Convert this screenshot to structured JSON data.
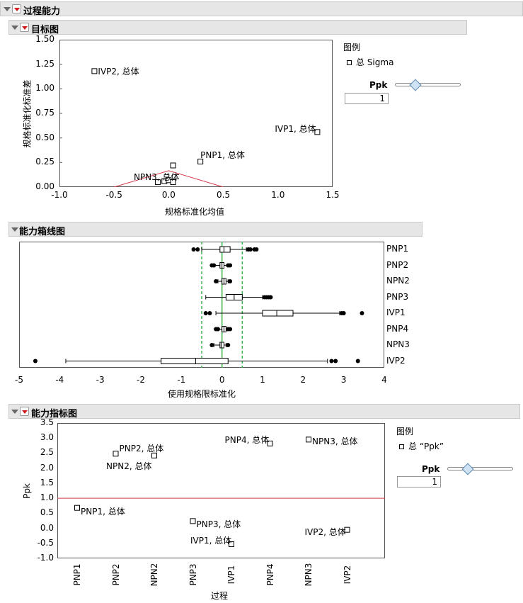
{
  "sections": {
    "main_title": "过程能力",
    "goal_plot_title": "目标图",
    "boxplot_title": "能力箱线图",
    "index_plot_title": "能力指标图"
  },
  "goal_plot": {
    "legend_title": "图例",
    "legend_item": "总 Sigma",
    "slider_label": "Ppk",
    "slider_value": "1",
    "xlabel": "规格标准化均值",
    "ylabel": "规格标准化标准差",
    "xticks": [
      "-1.0",
      "-0.5",
      "0.0",
      "0.5",
      "1.0",
      "1.5"
    ],
    "yticks": [
      "0.00",
      "0.25",
      "0.50",
      "0.75",
      "1.00",
      "1.25",
      "1.50"
    ],
    "point_labels": [
      "IVP2, 总体",
      "IVP1, 总体",
      "PNP1, 总体",
      "NPN3, 总体"
    ]
  },
  "boxplot": {
    "xlabel": "使用规格限标准化",
    "xticks": [
      "-5",
      "-4",
      "-3",
      "-2",
      "-1",
      "0",
      "1",
      "2",
      "3",
      "4"
    ],
    "processes": [
      "PNP1",
      "PNP2",
      "NPN2",
      "PNP3",
      "IVP1",
      "PNP4",
      "NPN3",
      "IVP2"
    ]
  },
  "index_plot": {
    "legend_title": "图例",
    "legend_item": "总 “Ppk”",
    "slider_label": "Ppk",
    "slider_value": "1",
    "xlabel": "过程",
    "ylabel": "Ppk",
    "yticks": [
      "3.5",
      "3.0",
      "2.5",
      "2.0",
      "1.5",
      "1.0",
      "0.5",
      "0.0",
      "-0.5",
      "-1.0"
    ],
    "categories": [
      "PNP1",
      "PNP2",
      "NPN2",
      "PNP3",
      "IVP1",
      "PNP4",
      "NPN3",
      "IVP2"
    ],
    "point_labels": [
      "PNP1, 总体",
      "PNP2, 总体",
      "NPN2, 总体",
      "PNP3, 总体",
      "IVP1, 总体",
      "PNP4, 总体",
      "NPN3, 总体",
      "IVP2, 总体"
    ]
  },
  "chart_data": [
    {
      "type": "scatter",
      "title": "目标图",
      "xlabel": "规格标准化均值",
      "ylabel": "规格标准化标准差",
      "xlim": [
        -1.0,
        1.5
      ],
      "ylim": [
        0.0,
        1.5
      ],
      "series": [
        {
          "name": "总 Sigma",
          "points": [
            {
              "label": "IVP2, 总体",
              "x": -0.68,
              "y": 1.18
            },
            {
              "label": "IVP1, 总体",
              "x": 1.36,
              "y": 0.56
            },
            {
              "label": "PNP1, 总体",
              "x": 0.04,
              "y": 0.22
            },
            {
              "label": "PNP1, 总体",
              "x": 0.29,
              "y": 0.26
            },
            {
              "label": "NPN3, 总体",
              "x": -0.1,
              "y": 0.05
            },
            {
              "label": "NPN3, 总体",
              "x": -0.04,
              "y": 0.06
            },
            {
              "label": "NPN3, 总体",
              "x": 0.0,
              "y": 0.07
            },
            {
              "label": "NPN3, 总体",
              "x": 0.04,
              "y": 0.05
            }
          ]
        }
      ],
      "ppk_curve_level": 1
    },
    {
      "type": "box",
      "title": "能力箱线图",
      "xlabel": "使用规格限标准化",
      "xlim": [
        -5,
        4
      ],
      "spec_limits": [
        -0.5,
        0.5
      ],
      "target": 0,
      "boxes": [
        {
          "name": "PNP1",
          "min": -0.5,
          "q1": -0.05,
          "median": 0.05,
          "q3": 0.2,
          "max": 0.6,
          "outliers": [
            -0.7,
            -0.6,
            0.65,
            0.7,
            0.8,
            0.85
          ]
        },
        {
          "name": "PNP2",
          "min": -0.2,
          "q1": -0.05,
          "median": 0.0,
          "q3": 0.05,
          "max": 0.15,
          "outliers": [
            -0.25,
            -0.2,
            0.15,
            0.2
          ]
        },
        {
          "name": "NPN2",
          "min": -0.1,
          "q1": 0.0,
          "median": 0.05,
          "q3": 0.1,
          "max": 0.15,
          "outliers": [
            -0.15,
            0.2
          ]
        },
        {
          "name": "PNP3",
          "min": -0.4,
          "q1": 0.1,
          "median": 0.3,
          "q3": 0.5,
          "max": 1.0,
          "outliers": [
            1.05,
            1.1,
            1.15,
            1.2
          ]
        },
        {
          "name": "IVP1",
          "min": -0.15,
          "q1": 1.0,
          "median": 1.35,
          "q3": 1.75,
          "max": 2.9,
          "outliers": [
            -0.4,
            -0.3,
            2.95,
            3.0,
            3.45
          ]
        },
        {
          "name": "PNP4",
          "min": -0.1,
          "q1": 0.0,
          "median": 0.05,
          "q3": 0.1,
          "max": 0.15,
          "outliers": [
            -0.15,
            -0.1,
            0.15,
            0.2
          ]
        },
        {
          "name": "NPN3",
          "min": -0.2,
          "q1": -0.05,
          "median": -0.02,
          "q3": 0.05,
          "max": 0.1,
          "outliers": [
            -0.25,
            0.15
          ]
        },
        {
          "name": "IVP2",
          "min": -3.85,
          "q1": -1.5,
          "median": -0.65,
          "q3": 0.15,
          "max": 2.6,
          "outliers": [
            -4.6,
            2.7,
            2.8,
            3.35
          ]
        }
      ]
    },
    {
      "type": "scatter",
      "title": "能力指标图",
      "xlabel": "过程",
      "ylabel": "Ppk",
      "ylim": [
        -1.0,
        3.5
      ],
      "reference_line": 1.0,
      "categories": [
        "PNP1",
        "PNP2",
        "NPN2",
        "PNP3",
        "IVP1",
        "PNP4",
        "NPN3",
        "IVP2"
      ],
      "series": [
        {
          "name": "总 “Ppk”",
          "values": [
            0.68,
            2.48,
            2.42,
            0.24,
            -0.53,
            2.82,
            2.95,
            -0.05
          ]
        }
      ]
    }
  ]
}
